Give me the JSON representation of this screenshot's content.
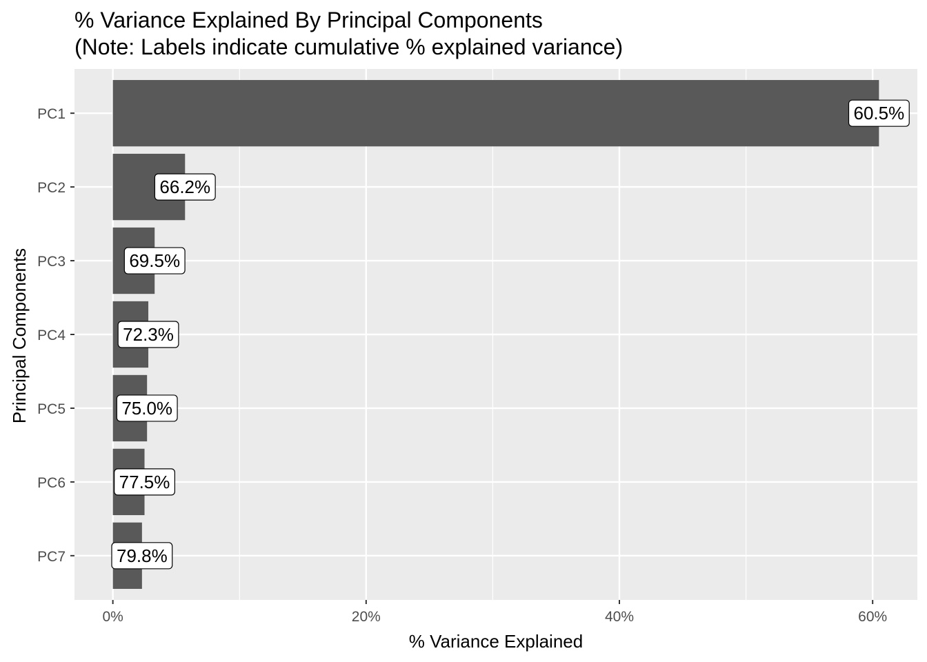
{
  "chart_data": {
    "type": "bar",
    "orientation": "horizontal",
    "title": "% Variance Explained By Principal Components",
    "subtitle": "(Note: Labels indicate cumulative % explained variance)",
    "xlabel": "% Variance Explained",
    "ylabel": "Principal Components",
    "categories": [
      "PC1",
      "PC2",
      "PC3",
      "PC4",
      "PC5",
      "PC6",
      "PC7"
    ],
    "values": [
      60.5,
      5.7,
      3.3,
      2.8,
      2.7,
      2.5,
      2.3
    ],
    "data_labels": [
      "60.5%",
      "66.2%",
      "69.5%",
      "72.3%",
      "75.0%",
      "77.5%",
      "79.8%"
    ],
    "xlim": [
      -3.03,
      63.53
    ],
    "x_ticks": [
      0,
      20,
      40,
      60
    ],
    "x_tick_labels": [
      "0%",
      "20%",
      "40%",
      "60%"
    ],
    "grid": true,
    "colors": {
      "bar": "#595959",
      "panel": "#ebebeb",
      "grid": "#ffffff",
      "label_box": "#ffffff"
    }
  }
}
